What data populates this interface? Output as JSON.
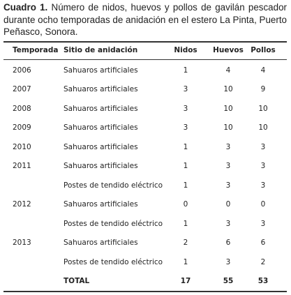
{
  "caption": {
    "label": "Cuadro 1.",
    "text": "Número de nidos, huevos y pollos de gavilán pescador durante ocho temporadas de anidación en el estero La Pinta, Puerto Peñasco, Sonora."
  },
  "table": {
    "header": [
      "Temporada",
      "Sitio de anidación",
      "Nidos",
      "Huevos",
      "Pollos"
    ],
    "rows": [
      [
        "2006",
        "Sahuaros artificiales",
        1,
        4,
        4
      ],
      [
        "2007",
        "Sahuaros artificiales",
        3,
        10,
        9
      ],
      [
        "2008",
        "Sahuaros artificiales",
        3,
        10,
        10
      ],
      [
        "2009",
        "Sahuaros artificiales",
        3,
        10,
        10
      ],
      [
        "2010",
        "Sahuaros artificiales",
        1,
        3,
        3
      ],
      [
        "2011",
        "Sahuaros artificiales",
        1,
        3,
        3
      ],
      [
        null,
        "Postes de tendido eléctrico",
        1,
        3,
        3
      ],
      [
        "2012",
        "Sahuaros artificiales",
        0,
        0,
        0
      ],
      [
        null,
        "Postes de tendido eléctrico",
        1,
        3,
        3
      ],
      [
        "2013",
        "Sahuaros artificiales",
        2,
        6,
        6
      ],
      [
        null,
        "Postes de tendido eléctrico",
        1,
        3,
        2
      ],
      [
        null,
        "TOTAL",
        17,
        55,
        53
      ]
    ]
  }
}
